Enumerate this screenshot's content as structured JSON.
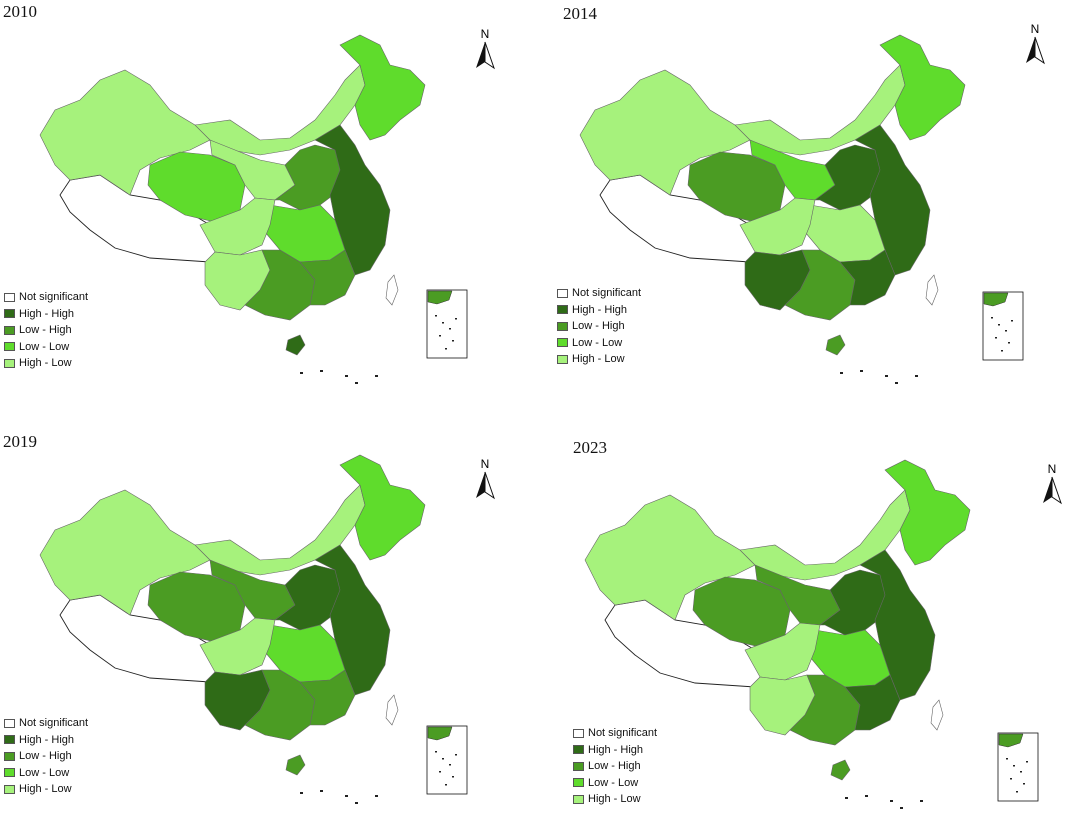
{
  "colors": {
    "not_significant": "#ffffff",
    "high_high": "#2f6b17",
    "low_high": "#4b9c23",
    "low_low": "#5fdc2c",
    "high_low": "#a6f27c",
    "outline": "#666666"
  },
  "legend": [
    {
      "label": "Not significant",
      "color_key": "not_significant"
    },
    {
      "label": "High - High",
      "color_key": "high_high"
    },
    {
      "label": "Low - High",
      "color_key": "low_high"
    },
    {
      "label": "Low - Low",
      "color_key": "low_low"
    },
    {
      "label": "High - Low",
      "color_key": "high_low"
    }
  ],
  "north_label": "N",
  "panels": [
    {
      "year": "2010",
      "regions": {
        "west": "not_significant",
        "xinjiang": "high_low",
        "innermongolia": "high_low",
        "northeast": "low_low",
        "qinghai": "low_low",
        "gansu": "high_low",
        "north": "low_high",
        "coast": "high_high",
        "central": "low_low",
        "sichuan": "high_low",
        "southwest": "high_low",
        "south": "low_high",
        "southeast": "low_high",
        "hainan": "high_high",
        "taiwan": "not_significant"
      }
    },
    {
      "year": "2014",
      "regions": {
        "west": "not_significant",
        "xinjiang": "high_low",
        "innermongolia": "high_low",
        "northeast": "low_low",
        "qinghai": "low_high",
        "gansu": "low_low",
        "north": "high_high",
        "coast": "high_high",
        "central": "high_low",
        "sichuan": "high_low",
        "southwest": "high_high",
        "south": "low_high",
        "southeast": "high_high",
        "hainan": "low_high",
        "taiwan": "not_significant"
      }
    },
    {
      "year": "2019",
      "regions": {
        "west": "not_significant",
        "xinjiang": "high_low",
        "innermongolia": "high_low",
        "northeast": "low_low",
        "qinghai": "low_high",
        "gansu": "low_high",
        "north": "high_high",
        "coast": "high_high",
        "central": "low_low",
        "sichuan": "high_low",
        "southwest": "high_high",
        "south": "low_high",
        "southeast": "low_high",
        "hainan": "low_high",
        "taiwan": "not_significant"
      }
    },
    {
      "year": "2023",
      "regions": {
        "west": "not_significant",
        "xinjiang": "high_low",
        "innermongolia": "high_low",
        "northeast": "low_low",
        "qinghai": "low_high",
        "gansu": "low_high",
        "north": "high_high",
        "coast": "high_high",
        "central": "low_low",
        "sichuan": "high_low",
        "southwest": "high_low",
        "south": "low_high",
        "southeast": "high_high",
        "hainan": "low_high",
        "taiwan": "not_significant"
      }
    }
  ]
}
